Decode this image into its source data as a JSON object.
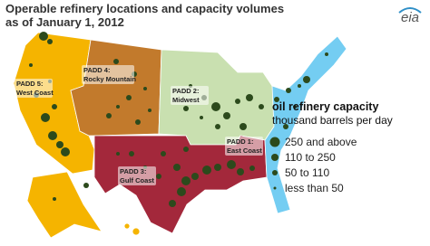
{
  "title": [
    "Operable refinery locations and capacity volumes",
    "as of January 1, 2012"
  ],
  "logo": "eia",
  "regions": [
    {
      "label": [
        "PADD 5:",
        "West Coast"
      ]
    },
    {
      "label": [
        "PADD 4:",
        "Rocky Mountain"
      ]
    },
    {
      "label": [
        "PADD 2:",
        "Midwest"
      ]
    },
    {
      "label": [
        "PADD 3:",
        "Gulf Coast"
      ]
    },
    {
      "label": [
        "PADD 1:",
        "East Coast"
      ]
    }
  ],
  "legend": {
    "title": "oil refinery capacity",
    "subtitle": "thousand barrels per day",
    "items": [
      "250 and above",
      "110 to 250",
      "50 to 110",
      "less than 50"
    ]
  }
}
